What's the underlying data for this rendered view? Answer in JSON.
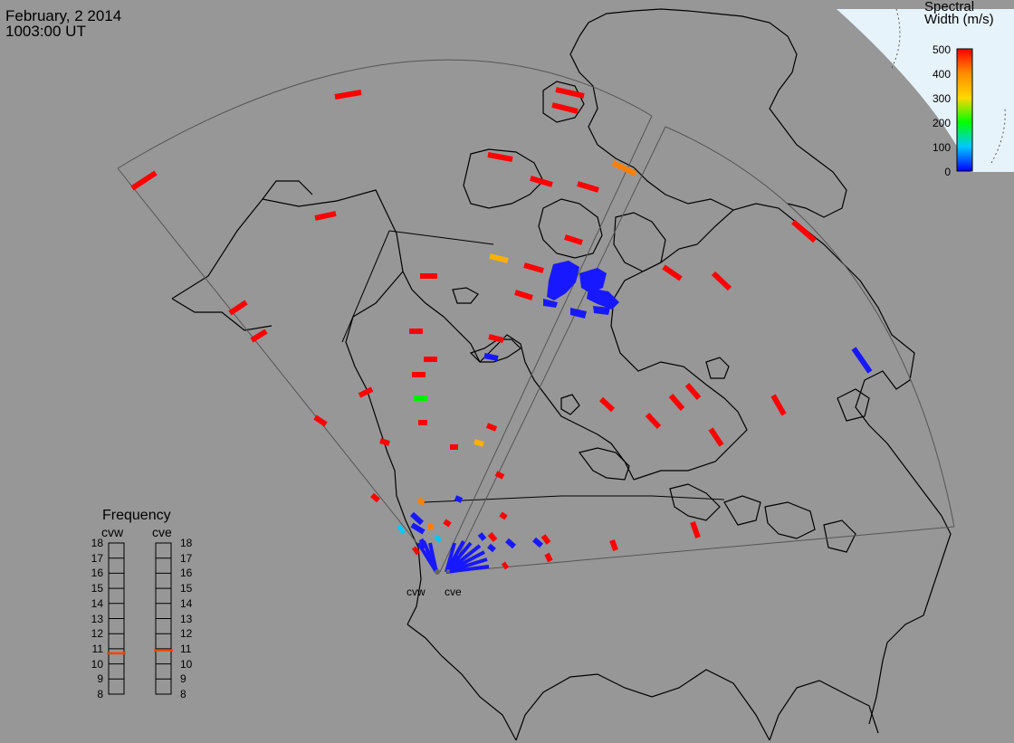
{
  "header": {
    "date": "February, 2 2014",
    "time": "1003:00 UT"
  },
  "colorbar": {
    "title_line1": "Spectral",
    "title_line2": "Width (m/s)",
    "ticks": [
      "500",
      "400",
      "300",
      "200",
      "100",
      "0"
    ],
    "range": [
      0,
      500
    ],
    "colors": [
      "#0000ff",
      "#00c8ff",
      "#00ff00",
      "#ffd700",
      "#ff8c00",
      "#ff0000"
    ]
  },
  "frequency": {
    "title": "Frequency",
    "radars": [
      "cvw",
      "cve"
    ],
    "ticks": [
      "18",
      "17",
      "16",
      "15",
      "14",
      "13",
      "12",
      "11",
      "10",
      "9",
      "8"
    ],
    "cvw_mhz": 10.7,
    "cve_mhz": 10.9,
    "marker_color": "#ff4500"
  },
  "radar_sites": [
    "cvw",
    "cve"
  ],
  "colors": {
    "background": "#979797",
    "sun_region": "#e6f3fb",
    "coast": "#000000",
    "fov": "#444444"
  }
}
